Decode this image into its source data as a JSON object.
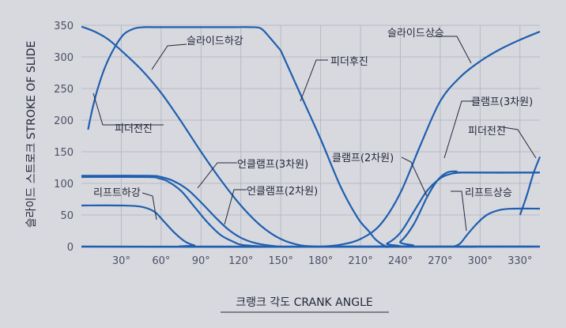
{
  "chart_data": {
    "type": "line",
    "ylabel": "슬라이드 스트로크 STROKE OF SLIDE",
    "xlabel": "크랭크 각도 CRANK ANGLE",
    "xlim": [
      0,
      345
    ],
    "ylim": [
      0,
      350
    ],
    "x_ticks": [
      30,
      60,
      90,
      120,
      150,
      180,
      210,
      240,
      270,
      300,
      330
    ],
    "x_tick_labels": [
      "30°",
      "60°",
      "90°",
      "120°",
      "150°",
      "180°",
      "210°",
      "240°",
      "270°",
      "300°",
      "330°"
    ],
    "y_ticks": [
      0,
      50,
      100,
      150,
      200,
      250,
      300,
      350
    ],
    "grid": true,
    "line_color": "#1f5fae",
    "series": [
      {
        "name": "슬라이드하강",
        "x": [
          0,
          10,
          20,
          30,
          45,
          60,
          75,
          90,
          105,
          120,
          135,
          150,
          165,
          180
        ],
        "y": [
          348,
          340,
          328,
          310,
          280,
          243,
          198,
          150,
          105,
          65,
          33,
          12,
          2,
          0
        ]
      },
      {
        "name": "슬라이드상승",
        "x": [
          180,
          195,
          210,
          225,
          240,
          255,
          270,
          285,
          300,
          315,
          330,
          345
        ],
        "y": [
          0,
          3,
          12,
          35,
          85,
          160,
          230,
          268,
          293,
          312,
          327,
          340
        ]
      },
      {
        "name": "피더전진",
        "x": [
          5,
          8,
          12,
          18,
          25,
          32,
          40,
          47,
          55
        ],
        "y": [
          185,
          215,
          248,
          285,
          315,
          336,
          345,
          347,
          347
        ]
      },
      {
        "name": "피더전진",
        "x": [
          55,
          100,
          115,
          127,
          135,
          142,
          150
        ],
        "y": [
          347,
          347,
          347,
          347,
          345,
          330,
          310
        ]
      },
      {
        "name": "피더후진",
        "x": [
          150,
          165,
          180,
          195,
          208,
          216,
          222,
          230,
          240,
          340
        ],
        "y": [
          310,
          240,
          170,
          95,
          45,
          25,
          10,
          0,
          0,
          0
        ]
      },
      {
        "name": "피더전진",
        "x": [
          330,
          335,
          340,
          345
        ],
        "y": [
          50,
          80,
          115,
          142
        ]
      },
      {
        "name": "언클램프(3차원)",
        "x": [
          0,
          50,
          60,
          70,
          80,
          90,
          100,
          110,
          120,
          130,
          140,
          150,
          165,
          180,
          345
        ],
        "y": [
          112,
          112,
          110,
          103,
          90,
          70,
          48,
          28,
          14,
          6,
          2,
          0,
          0,
          0,
          0
        ]
      },
      {
        "name": "언클램프(2차원)",
        "x": [
          0,
          50,
          58,
          65,
          75,
          85,
          95,
          105,
          115,
          120,
          130,
          140,
          155,
          345
        ],
        "y": [
          110,
          110,
          108,
          103,
          88,
          63,
          38,
          18,
          7,
          3,
          1,
          0,
          0,
          0
        ]
      },
      {
        "name": "클램프(2차원)",
        "x": [
          0,
          220,
          230,
          240,
          250,
          260,
          270,
          278,
          285,
          290,
          345
        ],
        "y": [
          0,
          0,
          5,
          22,
          55,
          88,
          108,
          115,
          117,
          117,
          117
        ]
      },
      {
        "name": "클램프(3차원)",
        "x": [
          0,
          230,
          240,
          250,
          260,
          268,
          275,
          282,
          287,
          345
        ],
        "y": [
          0,
          0,
          8,
          35,
          78,
          105,
          117,
          119,
          117,
          117
        ]
      },
      {
        "name": "리프트하강",
        "x": [
          0,
          30,
          45,
          55,
          62,
          70,
          78,
          85,
          95,
          345
        ],
        "y": [
          65,
          65,
          63,
          55,
          40,
          22,
          8,
          2,
          0,
          0
        ]
      },
      {
        "name": "리프트상승",
        "x": [
          0,
          275,
          280,
          285,
          290,
          297,
          305,
          315,
          325,
          345
        ],
        "y": [
          0,
          0,
          0,
          5,
          18,
          35,
          50,
          58,
          60,
          60
        ]
      }
    ],
    "annotations": [
      {
        "text": "슬라이드하강",
        "x": 55,
        "y": 250
      },
      {
        "text": "슬라이드상승",
        "x": 293,
        "y": 300
      },
      {
        "text": "피더후진",
        "x": 168,
        "y": 140
      },
      {
        "text": "피더전진",
        "x": 10,
        "y": 190
      },
      {
        "text": "피더전진",
        "x": 330,
        "y": 110
      },
      {
        "text": "클램프(3차원)",
        "x": 325,
        "y": 160
      },
      {
        "text": "클램프(2차원)",
        "x": 244,
        "y": 50
      },
      {
        "text": "언클램프(3차원)",
        "x": 90,
        "y": 75
      },
      {
        "text": "언클램프(2차원)",
        "x": 105,
        "y": 15
      },
      {
        "text": "리프트하강",
        "x": 55,
        "y": 28
      },
      {
        "text": "리프트상승",
        "x": 285,
        "y": 20
      }
    ]
  }
}
